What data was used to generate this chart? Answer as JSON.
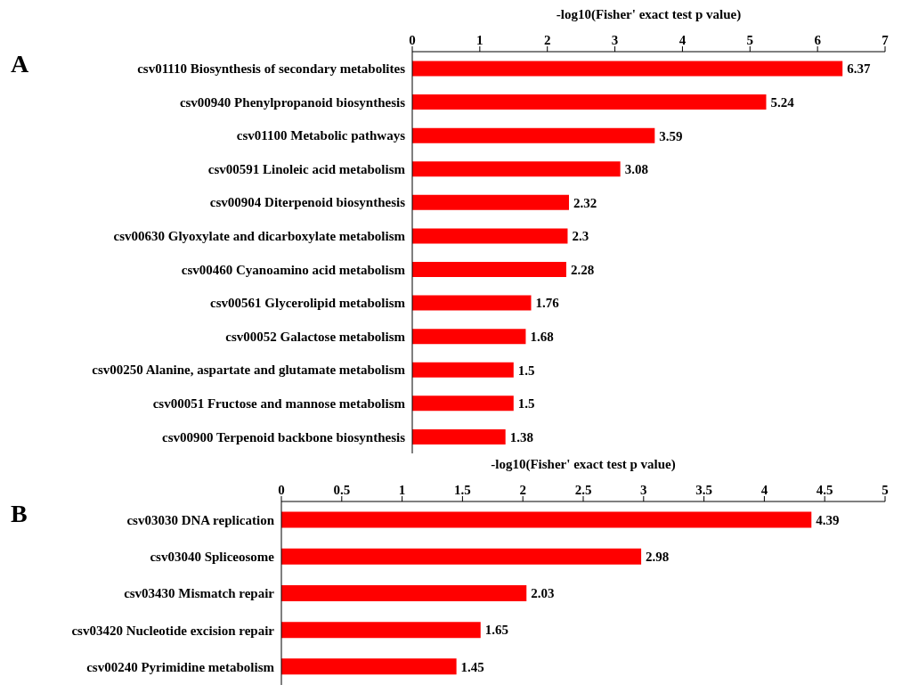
{
  "chart_data": [
    {
      "type": "bar",
      "orientation": "horizontal",
      "title": "A",
      "xlabel": "-log10(Fisher' exact test p value)",
      "categories": [
        "csv01110 Biosynthesis of secondary metabolites",
        "csv00940 Phenylpropanoid biosynthesis",
        "csv01100 Metabolic pathways",
        "csv00591 Linoleic acid metabolism",
        "csv00904 Diterpenoid biosynthesis",
        "csv00630 Glyoxylate and dicarboxylate metabolism",
        "csv00460 Cyanoamino acid metabolism",
        "csv00561 Glycerolipid metabolism",
        "csv00052 Galactose metabolism",
        "csv00250 Alanine, aspartate and glutamate metabolism",
        "csv00051 Fructose and mannose metabolism",
        "csv00900 Terpenoid backbone biosynthesis"
      ],
      "values": [
        6.37,
        5.24,
        3.59,
        3.08,
        2.32,
        2.3,
        2.28,
        1.76,
        1.68,
        1.5,
        1.5,
        1.38
      ],
      "color": "#ff0000",
      "xlim": [
        0,
        7
      ],
      "xticks": [
        0,
        1,
        2,
        3,
        4,
        5,
        6,
        7
      ],
      "data_labels": true,
      "grid": false,
      "legend": false
    },
    {
      "type": "bar",
      "orientation": "horizontal",
      "title": "B",
      "xlabel": "-log10(Fisher' exact test p value)",
      "categories": [
        "csv03030 DNA replication",
        "csv03040 Spliceosome",
        "csv03430 Mismatch repair",
        "csv03420 Nucleotide excision repair",
        "csv00240 Pyrimidine metabolism"
      ],
      "values": [
        4.39,
        2.98,
        2.03,
        1.65,
        1.45
      ],
      "color": "#ff0000",
      "xlim": [
        0,
        5
      ],
      "xticks": [
        0,
        0.5,
        1,
        1.5,
        2,
        2.5,
        3,
        3.5,
        4,
        4.5,
        5
      ],
      "data_labels": true,
      "grid": false,
      "legend": false
    }
  ]
}
